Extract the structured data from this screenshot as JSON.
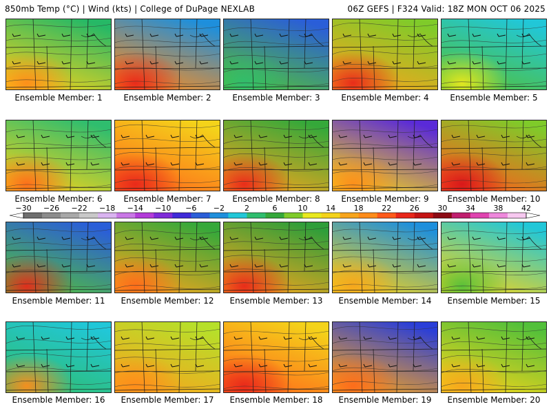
{
  "header": {
    "left": "850mb Temp (°C) | Wind (kts) | College of DuPage NEXLAB",
    "right": "06Z GEFS | F324 Valid: 18Z MON OCT 06 2025"
  },
  "panels": [
    {
      "label": "Ensemble Member: 1",
      "top_color": "#26b866",
      "bottom_color": "#f4d31a",
      "hot_spot": "#ff8c1a"
    },
    {
      "label": "Ensemble Member: 2",
      "top_color": "#1e8fdc",
      "bottom_color": "#ff8c1a",
      "hot_spot": "#e8261a"
    },
    {
      "label": "Ensemble Member: 3",
      "top_color": "#2a5ed8",
      "bottom_color": "#52c03a",
      "hot_spot": "#2fbd6e"
    },
    {
      "label": "Ensemble Member: 4",
      "top_color": "#7fcb2a",
      "bottom_color": "#f7a51c",
      "hot_spot": "#e8261a"
    },
    {
      "label": "Ensemble Member: 5",
      "top_color": "#21c7d8",
      "bottom_color": "#52c03a",
      "hot_spot": "#e9e91e"
    },
    {
      "label": "Ensemble Member: 6",
      "top_color": "#2fbd6e",
      "bottom_color": "#f4d31a",
      "hot_spot": "#ff6a1a"
    },
    {
      "label": "Ensemble Member: 7",
      "top_color": "#f4d31a",
      "bottom_color": "#ff6a1a",
      "hot_spot": "#e8261a"
    },
    {
      "label": "Ensemble Member: 8",
      "top_color": "#35a83a",
      "bottom_color": "#f7a51c",
      "hot_spot": "#e8261a"
    },
    {
      "label": "Ensemble Member: 9",
      "top_color": "#5a2ad8",
      "bottom_color": "#f4d31a",
      "hot_spot": "#ff8c1a"
    },
    {
      "label": "Ensemble Member: 10",
      "top_color": "#7fcb2a",
      "bottom_color": "#ff5a1a",
      "hot_spot": "#d8141a"
    },
    {
      "label": "Ensemble Member: 11",
      "top_color": "#2a5ed8",
      "bottom_color": "#52c03a",
      "hot_spot": "#e8261a"
    },
    {
      "label": "Ensemble Member: 12",
      "top_color": "#35a83a",
      "bottom_color": "#f7a51c",
      "hot_spot": "#ff6a1a"
    },
    {
      "label": "Ensemble Member: 13",
      "top_color": "#2e9e3a",
      "bottom_color": "#f7a51c",
      "hot_spot": "#e8261a"
    },
    {
      "label": "Ensemble Member: 14",
      "top_color": "#1e8fdc",
      "bottom_color": "#f4d31a",
      "hot_spot": "#f7a51c"
    },
    {
      "label": "Ensemble Member: 15",
      "top_color": "#21c7d8",
      "bottom_color": "#f4d31a",
      "hot_spot": "#52c03a"
    },
    {
      "label": "Ensemble Member: 16",
      "top_color": "#21c7d8",
      "bottom_color": "#2fbd6e",
      "hot_spot": "#ff8c1a"
    },
    {
      "label": "Ensemble Member: 17",
      "top_color": "#b6e02a",
      "bottom_color": "#f7a51c",
      "hot_spot": "#ff8c1a"
    },
    {
      "label": "Ensemble Member: 18",
      "top_color": "#f4d31a",
      "bottom_color": "#ff6a1a",
      "hot_spot": "#e8261a"
    },
    {
      "label": "Ensemble Member: 19",
      "top_color": "#2a3ed8",
      "bottom_color": "#f7a51c",
      "hot_spot": "#ff6a1a"
    },
    {
      "label": "Ensemble Member: 20",
      "top_color": "#52c03a",
      "bottom_color": "#f4d31a",
      "hot_spot": "#f7a51c"
    }
  ],
  "colorbar": {
    "ticks": [
      "−30",
      "−26",
      "−22",
      "−18",
      "−14",
      "−10",
      "−6",
      "−2",
      "2",
      "6",
      "10",
      "14",
      "18",
      "22",
      "26",
      "30",
      "34",
      "38",
      "42"
    ],
    "colors": [
      "#6e6e6e",
      "#8c8c8c",
      "#a8a8a8",
      "#c8c8c8",
      "#d9b3f0",
      "#c977e6",
      "#b33bd9",
      "#7e2ad8",
      "#3f2ad8",
      "#2a5ed8",
      "#1e8fdc",
      "#21c7d8",
      "#2fbd6e",
      "#35a83a",
      "#7fcb2a",
      "#e9e91e",
      "#f4d31a",
      "#f7a51c",
      "#ff8c1a",
      "#ff5a1a",
      "#e8261a",
      "#c41414",
      "#8c0a14",
      "#c01e6e",
      "#e044b0",
      "#ee88dc",
      "#f7c8f0"
    ]
  }
}
